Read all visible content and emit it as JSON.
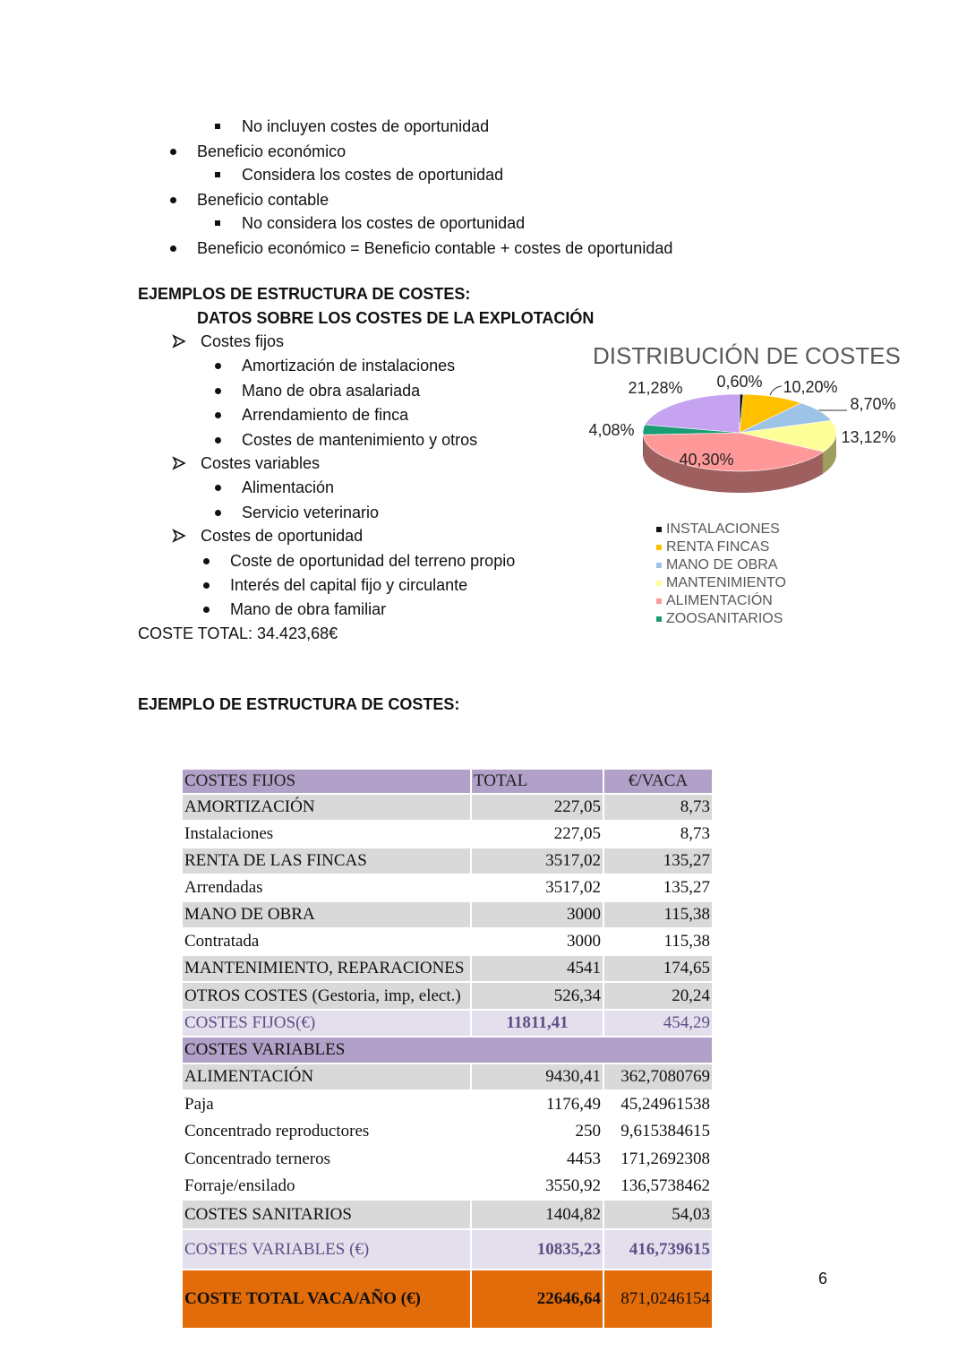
{
  "text": {
    "lines": [
      "No incluyen costes de oportunidad",
      "Beneficio económico",
      "Considera los costes de oportunidad",
      "Beneficio contable",
      "No considera los costes de oportunidad",
      "Beneficio económico = Beneficio contable + costes de oportunidad",
      "EJEMPLOS DE ESTRUCTURA DE COSTES:",
      "DATOS SOBRE LOS COSTES DE LA EXPLOTACIÓN",
      "Costes fijos",
      "Amortización de instalaciones",
      "Mano de obra asalariada",
      "Arrendamiento de finca",
      "Costes de mantenimiento y otros",
      "Costes variables",
      "Alimentación",
      "Servicio veterinario",
      "Costes de oportunidad",
      "Coste de oportunidad del terreno propio",
      "Interés del capital fijo y circulante",
      "Mano de obra familiar",
      "COSTE TOTAL: 34.423,68€",
      "EJEMPLO DE ESTRUCTURA DE COSTES:"
    ],
    "page_number": "6"
  },
  "chart_data": {
    "type": "pie",
    "title": "DISTRIBUCIÓN DE COSTES",
    "categories": [
      "INSTALACIONES",
      "RENTA FINCAS",
      "MANO DE OBRA",
      "MANTENIMIENTO",
      "ALIMENTACIÓN",
      "ZOOSANITARIOS",
      null
    ],
    "values": [
      0.6,
      10.2,
      8.7,
      13.12,
      40.3,
      4.08,
      21.28
    ],
    "value_labels": [
      "0,60%",
      "10,20%",
      "8,70%",
      "13,12%",
      "40,30%",
      "4,08%",
      "21,28%"
    ],
    "colors": [
      "#111111",
      "#ffc000",
      "#9dc3e6",
      "#ffff99",
      "#ff9999",
      "#1a9c74",
      "#c5a3f0"
    ]
  },
  "table": {
    "header": [
      "COSTES FIJOS",
      "TOTAL",
      "€/VACA"
    ],
    "rows": [
      [
        "AMORTIZACIÓN",
        "227,05",
        "8,73"
      ],
      [
        "Instalaciones",
        "227,05",
        "8,73"
      ],
      [
        "RENTA DE LAS FINCAS",
        "3517,02",
        "135,27"
      ],
      [
        "Arrendadas",
        "3517,02",
        "135,27"
      ],
      [
        "MANO DE OBRA",
        "3000",
        "115,38"
      ],
      [
        "Contratada",
        "3000",
        "115,38"
      ],
      [
        "MANTENIMIENTO, REPARACIONES",
        "4541",
        "174,65"
      ],
      [
        "OTROS COSTES (Gestoria, imp, elect.)",
        "526,34",
        "20,24"
      ],
      [
        "COSTES FIJOS(€)",
        "11811,41",
        "454,29"
      ],
      [
        "COSTES VARIABLES"
      ],
      [
        "ALIMENTACIÓN",
        "9430,41",
        "362,7080769"
      ],
      [
        "Paja",
        "1176,49",
        "45,24961538"
      ],
      [
        "Concentrado reproductores",
        "250",
        "9,615384615"
      ],
      [
        "Concentrado terneros",
        "4453",
        "171,2692308"
      ],
      [
        "Forraje/ensilado",
        "3550,92",
        "136,5738462"
      ],
      [
        "COSTES SANITARIOS",
        "1404,82",
        "54,03"
      ],
      [
        "COSTES VARIABLES (€)",
        "10835,23",
        "416,739615"
      ],
      [
        "COSTE TOTAL VACA/AÑO (€)",
        "22646,64",
        "871,0246154"
      ]
    ]
  }
}
